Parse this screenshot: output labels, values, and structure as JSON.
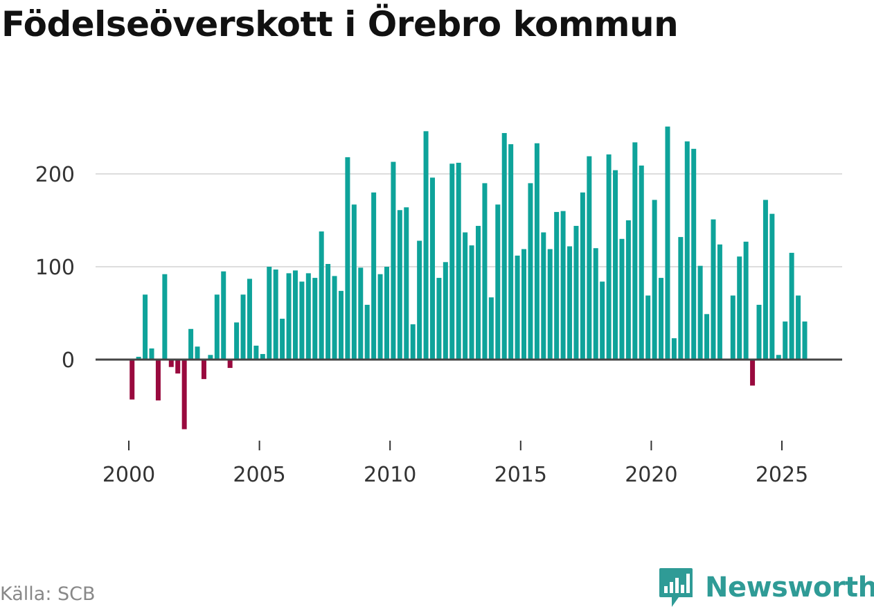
{
  "title": "Födelseöverskott i Örebro kommun",
  "source": "Källa: SCB",
  "brand": "Newsworthy",
  "brand_icon": "newsworthy-logo-icon",
  "colors": {
    "positive": "#0ea39a",
    "negative": "#990a3e",
    "grid": "#dddddd",
    "zero_line": "#444444",
    "brand": "#2f9b96"
  },
  "chart_data": {
    "type": "bar",
    "title": "Födelseöverskott i Örebro kommun",
    "xlabel": "",
    "ylabel": "",
    "x_start": 2000,
    "periods_per_year": 4,
    "ylim": [
      -80,
      255
    ],
    "y_ticks": [
      0,
      100,
      200
    ],
    "x_ticks": [
      2000,
      2005,
      2010,
      2015,
      2020,
      2025
    ],
    "values": [
      -43,
      3,
      70,
      12,
      -44,
      92,
      -8,
      -15,
      -75,
      33,
      14,
      -21,
      5,
      70,
      95,
      -9,
      40,
      70,
      87,
      15,
      6,
      100,
      97,
      44,
      93,
      96,
      84,
      93,
      88,
      138,
      103,
      90,
      74,
      218,
      167,
      99,
      59,
      180,
      92,
      100,
      213,
      161,
      164,
      38,
      128,
      246,
      196,
      88,
      105,
      211,
      212,
      137,
      123,
      144,
      190,
      67,
      167,
      244,
      232,
      112,
      119,
      190,
      233,
      137,
      119,
      159,
      160,
      122,
      144,
      180,
      219,
      120,
      84,
      221,
      204,
      130,
      150,
      234,
      209,
      69,
      172,
      88,
      251,
      23,
      132,
      235,
      227,
      101,
      49,
      151,
      124,
      0,
      69,
      111,
      127,
      -28,
      59,
      172,
      157,
      5,
      41,
      115,
      69,
      41
    ]
  }
}
